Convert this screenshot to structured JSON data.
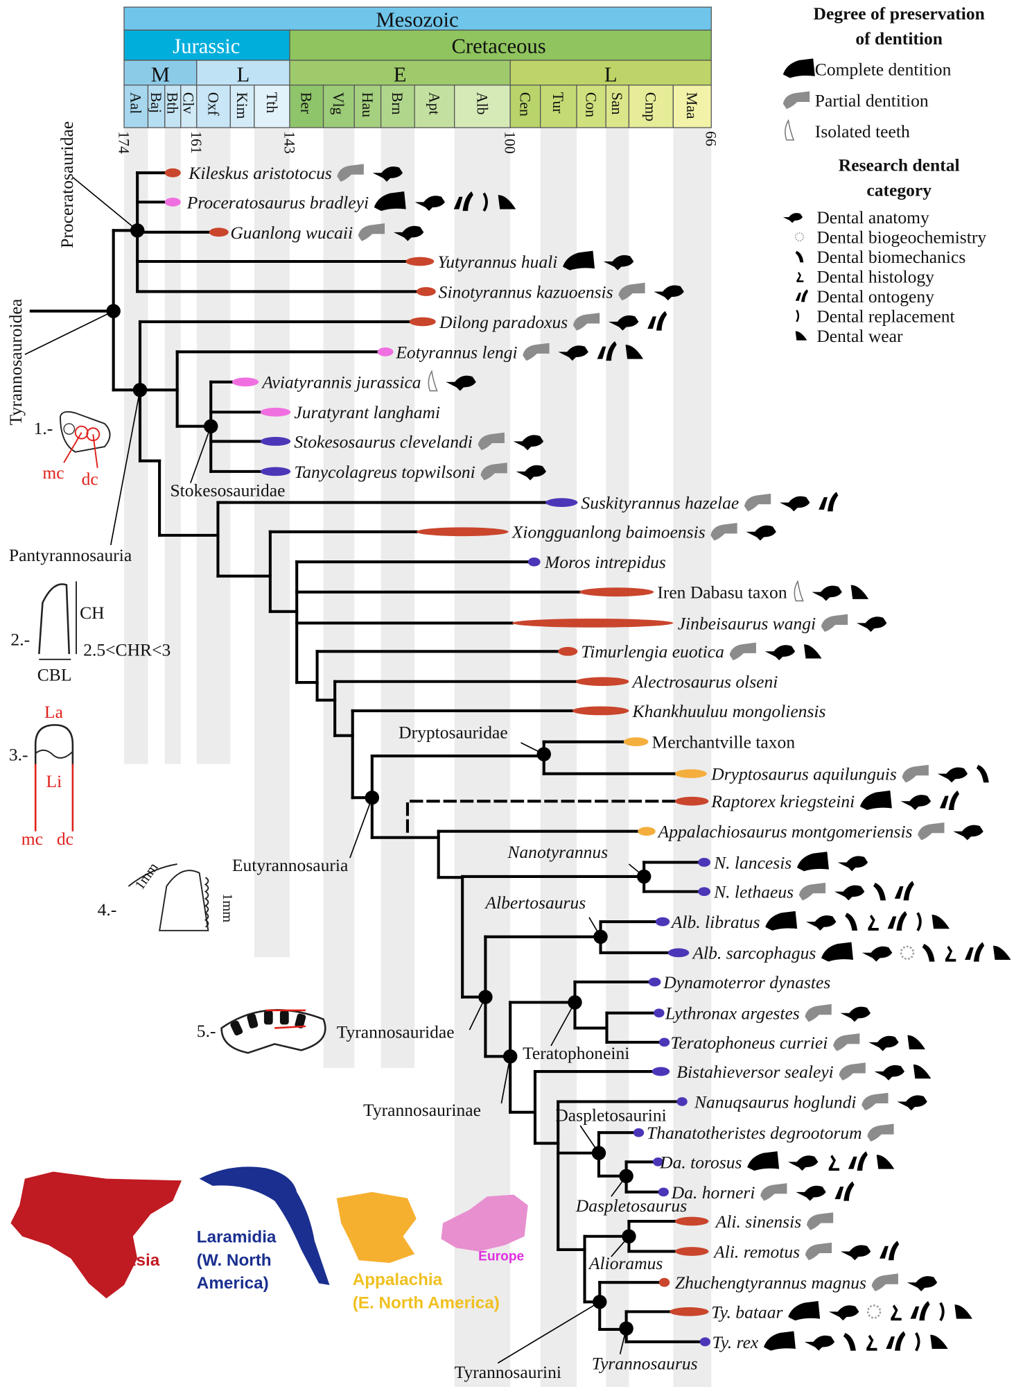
{
  "timescale": {
    "era": "Mesozoic",
    "periods": [
      "Jurassic",
      "Cretaceous"
    ],
    "epochs": [
      "M",
      "L",
      "E",
      "L"
    ],
    "stages": [
      "Aal",
      "Baj",
      "Bth",
      "Clv",
      "Oxf",
      "Kim",
      "Tth",
      "Ber",
      "Vlg",
      "Hau",
      "Brn",
      "Apt",
      "Alb",
      "Cen",
      "Tur",
      "Con",
      "San",
      "Cmp",
      "Maa"
    ],
    "ticks_ma": [
      "174",
      "161",
      "143",
      "100",
      "66"
    ]
  },
  "legend": {
    "preservation_title_1": "Degree of preservation",
    "preservation_title_2": "of dentition",
    "preservation": [
      "Complete dentition",
      "Partial dentition",
      "Isolated teeth"
    ],
    "research_title_1": "Research dental",
    "research_title_2": "category",
    "research": [
      "Dental anatomy",
      "Dental biogeochemistry",
      "Dental biomechanics",
      "Dental histology",
      "Dental ontogeny",
      "Dental replacement",
      "Dental wear"
    ]
  },
  "colors": {
    "Asia": "#c9452c",
    "Laramidia": "#4b36b8",
    "Appalachia": "#f4ae3e",
    "Europe": "#f06fe0",
    "complete": "#000000",
    "partial": "#8c8c8c"
  },
  "taxa": [
    {
      "name": "Kileskus aristotocus",
      "italic": true,
      "region": "Asia",
      "icons": [
        "partial",
        "anatomy"
      ]
    },
    {
      "name": "Proceratosaurus bradleyi",
      "italic": true,
      "region": "Europe",
      "icons": [
        "complete",
        "anatomy",
        "ontogeny",
        "replacement",
        "wear"
      ]
    },
    {
      "name": "Guanlong wucaii",
      "italic": true,
      "region": "Asia",
      "icons": [
        "partial",
        "anatomy"
      ]
    },
    {
      "name": "Yutyrannus huali",
      "italic": true,
      "region": "Asia",
      "icons": [
        "complete",
        "anatomy"
      ]
    },
    {
      "name": "Sinotyrannus kazuoensis",
      "italic": true,
      "region": "Asia",
      "icons": [
        "partial",
        "anatomy"
      ]
    },
    {
      "name": "Dilong paradoxus",
      "italic": true,
      "region": "Asia",
      "icons": [
        "partial",
        "anatomy",
        "ontogeny"
      ]
    },
    {
      "name": "Eotyrannus lengi",
      "italic": true,
      "region": "Europe",
      "icons": [
        "partial",
        "anatomy",
        "ontogeny",
        "wear"
      ]
    },
    {
      "name": "Aviatyrannis jurassica",
      "italic": true,
      "region": "Europe",
      "icons": [
        "isolated",
        "anatomy"
      ]
    },
    {
      "name": "Juratyrant langhami",
      "italic": true,
      "region": "Europe",
      "icons": []
    },
    {
      "name": "Stokesosaurus clevelandi",
      "italic": true,
      "region": "Laramidia",
      "icons": [
        "partial",
        "anatomy"
      ]
    },
    {
      "name": "Tanycolagreus topwilsoni",
      "italic": true,
      "region": "Laramidia",
      "icons": [
        "partial",
        "anatomy"
      ]
    },
    {
      "name": "Suskityrannus hazelae",
      "italic": true,
      "region": "Laramidia",
      "icons": [
        "partial",
        "anatomy",
        "ontogeny"
      ]
    },
    {
      "name": "Xiongguanlong baimoensis",
      "italic": true,
      "region": "Asia",
      "icons": [
        "partial",
        "anatomy"
      ]
    },
    {
      "name": "Moros intrepidus",
      "italic": true,
      "region": "Laramidia",
      "icons": []
    },
    {
      "name": "Iren Dabasu taxon",
      "italic": false,
      "region": "Asia",
      "icons": [
        "isolated",
        "anatomy",
        "wear"
      ]
    },
    {
      "name": "Jinbeisaurus wangi",
      "italic": true,
      "region": "Asia",
      "icons": [
        "partial",
        "anatomy"
      ]
    },
    {
      "name": "Timurlengia euotica",
      "italic": true,
      "region": "Asia",
      "icons": [
        "partial",
        "anatomy",
        "wear"
      ]
    },
    {
      "name": "Alectrosaurus olseni",
      "italic": true,
      "region": "Asia",
      "icons": []
    },
    {
      "name": "Khankhuuluu mongoliensis",
      "italic": true,
      "region": "Asia",
      "icons": []
    },
    {
      "name": "Merchantville taxon",
      "italic": false,
      "region": "Appalachia",
      "icons": []
    },
    {
      "name": "Dryptosaurus aquilunguis",
      "italic": true,
      "region": "Appalachia",
      "icons": [
        "partial",
        "anatomy",
        "biomechanics"
      ]
    },
    {
      "name": "Raptorex kriegsteini",
      "italic": true,
      "region": "Asia",
      "icons": [
        "complete",
        "anatomy",
        "ontogeny"
      ]
    },
    {
      "name": "Appalachiosaurus montgomeriensis",
      "italic": true,
      "region": "Appalachia",
      "icons": [
        "partial",
        "anatomy"
      ]
    },
    {
      "name": "N. lancesis",
      "italic": true,
      "region": "Laramidia",
      "icons": [
        "complete",
        "anatomy"
      ]
    },
    {
      "name": "N. lethaeus",
      "italic": true,
      "region": "Laramidia",
      "icons": [
        "partial",
        "anatomy",
        "biomechanics",
        "ontogeny"
      ]
    },
    {
      "name": "Alb. libratus",
      "italic": true,
      "region": "Laramidia",
      "icons": [
        "complete",
        "anatomy",
        "biomechanics",
        "histology",
        "ontogeny",
        "replacement",
        "wear"
      ]
    },
    {
      "name": "Alb. sarcophagus",
      "italic": true,
      "region": "Laramidia",
      "icons": [
        "complete",
        "anatomy",
        "biogeochemistry",
        "biomechanics",
        "histology",
        "ontogeny",
        "wear"
      ]
    },
    {
      "name": "Dynamoterror dynastes",
      "italic": true,
      "region": "Laramidia",
      "icons": []
    },
    {
      "name": "Lythronax argestes",
      "italic": true,
      "region": "Laramidia",
      "icons": [
        "partial",
        "anatomy"
      ]
    },
    {
      "name": "Teratophoneus curriei",
      "italic": true,
      "region": "Laramidia",
      "icons": [
        "partial",
        "anatomy",
        "wear"
      ]
    },
    {
      "name": "Bistahieversor sealeyi",
      "italic": true,
      "region": "Laramidia",
      "icons": [
        "partial",
        "anatomy",
        "wear"
      ]
    },
    {
      "name": "Nanuqsaurus hoglundi",
      "italic": true,
      "region": "Laramidia",
      "icons": [
        "partial",
        "anatomy"
      ]
    },
    {
      "name": "Thanatotheristes degrootorum",
      "italic": true,
      "region": "Laramidia",
      "icons": [
        "partial"
      ]
    },
    {
      "name": "Da. torosus",
      "italic": true,
      "region": "Laramidia",
      "icons": [
        "complete",
        "anatomy",
        "histology",
        "ontogeny",
        "wear"
      ]
    },
    {
      "name": "Da. horneri",
      "italic": true,
      "region": "Laramidia",
      "icons": [
        "partial",
        "anatomy",
        "ontogeny"
      ]
    },
    {
      "name": "Ali. sinensis",
      "italic": true,
      "region": "Asia",
      "icons": [
        "partial"
      ]
    },
    {
      "name": "Ali. remotus",
      "italic": true,
      "region": "Asia",
      "icons": [
        "partial",
        "anatomy",
        "ontogeny"
      ]
    },
    {
      "name": "Zhuchengtyrannus magnus",
      "italic": true,
      "region": "Asia",
      "icons": [
        "partial",
        "anatomy"
      ]
    },
    {
      "name": "Ty. bataar",
      "italic": true,
      "region": "Asia",
      "icons": [
        "complete",
        "anatomy",
        "biogeochemistry",
        "histology",
        "ontogeny",
        "replacement",
        "wear"
      ]
    },
    {
      "name": "Ty. rex",
      "italic": true,
      "region": "Laramidia",
      "icons": [
        "complete",
        "anatomy",
        "biomechanics",
        "histology",
        "ontogeny",
        "replacement",
        "wear"
      ]
    }
  ],
  "clades": [
    {
      "name": "Proceratosauridae",
      "italic": false
    },
    {
      "name": "Tyrannosauroidea",
      "italic": false
    },
    {
      "name": "Stokesosauridae",
      "italic": false
    },
    {
      "name": "Pantyrannosauria",
      "italic": false
    },
    {
      "name": "Dryptosauridae",
      "italic": false
    },
    {
      "name": "Eutyrannosauria",
      "italic": false
    },
    {
      "name": "Nanotyrannus",
      "italic": true
    },
    {
      "name": "Albertosaurus",
      "italic": true
    },
    {
      "name": "Tyrannosauridae",
      "italic": false
    },
    {
      "name": "Teratophoneini",
      "italic": false
    },
    {
      "name": "Tyrannosaurinae",
      "italic": false
    },
    {
      "name": "Daspletosaurini",
      "italic": false
    },
    {
      "name": "Daspletosaurus",
      "italic": true
    },
    {
      "name": "Alioramus",
      "italic": true
    },
    {
      "name": "Tyrannosaurini",
      "italic": false
    },
    {
      "name": "Tyrannosaurus",
      "italic": true
    }
  ],
  "characters": {
    "c1": {
      "num": "1.-",
      "mc": "mc",
      "dc": "dc"
    },
    "c2": {
      "num": "2.-",
      "ch": "CH",
      "chr": "2.5<CHR<3",
      "cbl": "CBL"
    },
    "c3": {
      "num": "3.-",
      "la": "La",
      "li": "Li",
      "mc": "mc",
      "dc": "dc"
    },
    "c4": {
      "num": "4.-",
      "scale1": "1mm",
      "scale2": "1mm"
    },
    "c5": {
      "num": "5.-"
    }
  },
  "map": {
    "asia": "Asia",
    "laramidia_1": "Laramidia",
    "laramidia_2": "(W. North",
    "laramidia_3": "America)",
    "appalachia_1": "Appalachia",
    "appalachia_2": "(E. North America)",
    "europe": "Europe"
  }
}
